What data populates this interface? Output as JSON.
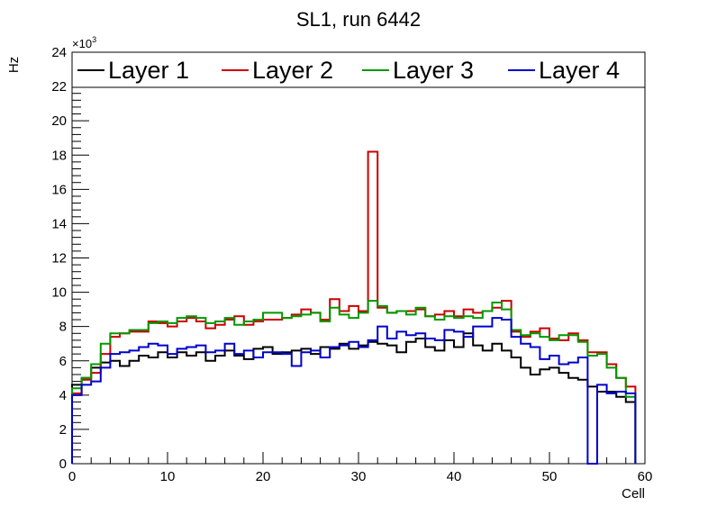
{
  "chart_data": {
    "type": "line",
    "title": "SL1, run 6442",
    "xlabel": "Cell",
    "ylabel": "Hz",
    "y_multiplier": "×10",
    "y_multiplier_exp": "3",
    "xlim": [
      0,
      60
    ],
    "ylim": [
      0,
      24
    ],
    "x_ticks": [
      "0",
      "10",
      "20",
      "30",
      "40",
      "50",
      "60"
    ],
    "y_ticks": [
      "0",
      "2",
      "4",
      "6",
      "8",
      "10",
      "12",
      "14",
      "16",
      "18",
      "20",
      "22",
      "24"
    ],
    "grid": false,
    "legend_position": "top",
    "bins": [
      1,
      2,
      3,
      4,
      5,
      6,
      7,
      8,
      9,
      10,
      11,
      12,
      13,
      14,
      15,
      16,
      17,
      18,
      19,
      20,
      21,
      22,
      23,
      24,
      25,
      26,
      27,
      28,
      29,
      30,
      31,
      32,
      33,
      34,
      35,
      36,
      37,
      38,
      39,
      40,
      41,
      42,
      43,
      44,
      45,
      46,
      47,
      48,
      49,
      50,
      51,
      52,
      53,
      54,
      55,
      56,
      57,
      58,
      59
    ],
    "series": [
      {
        "name": "Layer 1",
        "color": "#000000",
        "values": [
          4.6,
          5.0,
          5.6,
          5.9,
          6.0,
          5.7,
          6.0,
          6.3,
          6.2,
          6.5,
          6.2,
          6.5,
          6.3,
          6.5,
          6.0,
          6.3,
          6.6,
          6.3,
          6.1,
          6.7,
          6.8,
          6.4,
          6.5,
          6.6,
          6.7,
          6.4,
          6.8,
          6.7,
          7.0,
          6.7,
          6.9,
          7.1,
          7.0,
          6.9,
          6.5,
          7.1,
          7.3,
          6.8,
          6.6,
          7.2,
          6.8,
          7.6,
          6.9,
          6.6,
          7.0,
          6.6,
          6.2,
          5.6,
          5.2,
          5.5,
          5.6,
          5.3,
          5.0,
          4.9,
          4.5,
          4.2,
          4.2,
          3.9,
          3.6
        ]
      },
      {
        "name": "Layer 2",
        "color": "#cc0000",
        "values": [
          4.1,
          4.9,
          5.3,
          6.4,
          7.4,
          7.6,
          7.7,
          7.7,
          8.3,
          8.2,
          8.0,
          8.3,
          8.5,
          8.3,
          7.9,
          8.1,
          8.4,
          8.6,
          8.1,
          8.3,
          8.4,
          8.4,
          8.5,
          8.7,
          9.0,
          8.8,
          8.4,
          9.6,
          8.9,
          9.2,
          8.9,
          18.2,
          9.1,
          8.8,
          8.9,
          8.9,
          9.0,
          8.6,
          8.7,
          8.9,
          8.6,
          9.0,
          8.8,
          8.9,
          9.1,
          9.5,
          7.7,
          7.4,
          7.7,
          7.9,
          7.3,
          7.2,
          7.6,
          7.2,
          6.5,
          6.5,
          5.8,
          5.0,
          4.5
        ]
      },
      {
        "name": "Layer 3",
        "color": "#009900",
        "values": [
          4.4,
          5.0,
          5.8,
          7.0,
          7.6,
          7.6,
          7.8,
          7.8,
          8.2,
          8.3,
          8.2,
          8.5,
          8.6,
          8.5,
          8.2,
          8.3,
          8.5,
          8.1,
          8.3,
          8.4,
          8.8,
          8.8,
          8.5,
          8.6,
          8.7,
          8.8,
          8.3,
          9.1,
          8.7,
          8.5,
          8.8,
          9.5,
          9.2,
          8.8,
          8.9,
          8.7,
          9.1,
          8.6,
          8.4,
          8.6,
          8.5,
          8.6,
          8.5,
          8.9,
          9.4,
          9.0,
          7.8,
          7.5,
          7.6,
          7.4,
          7.2,
          7.5,
          7.5,
          7.1,
          6.3,
          6.4,
          5.6,
          5.0,
          3.9
        ]
      },
      {
        "name": "Layer 4",
        "color": "#0000cc",
        "values": [
          4.0,
          4.6,
          4.8,
          5.6,
          6.4,
          6.5,
          6.6,
          6.8,
          7.0,
          6.9,
          6.4,
          6.7,
          6.8,
          6.9,
          6.5,
          6.6,
          7.0,
          6.4,
          6.6,
          6.2,
          6.5,
          6.5,
          6.4,
          5.7,
          6.5,
          6.6,
          6.2,
          6.8,
          6.9,
          7.1,
          6.8,
          7.2,
          8.0,
          7.3,
          7.7,
          7.5,
          7.6,
          7.3,
          7.2,
          7.8,
          7.7,
          7.4,
          8.0,
          8.0,
          8.5,
          8.4,
          7.4,
          7.0,
          6.8,
          6.1,
          6.3,
          5.8,
          5.9,
          6.2,
          0,
          4.6,
          4.1,
          4.2,
          4.1
        ]
      }
    ]
  }
}
